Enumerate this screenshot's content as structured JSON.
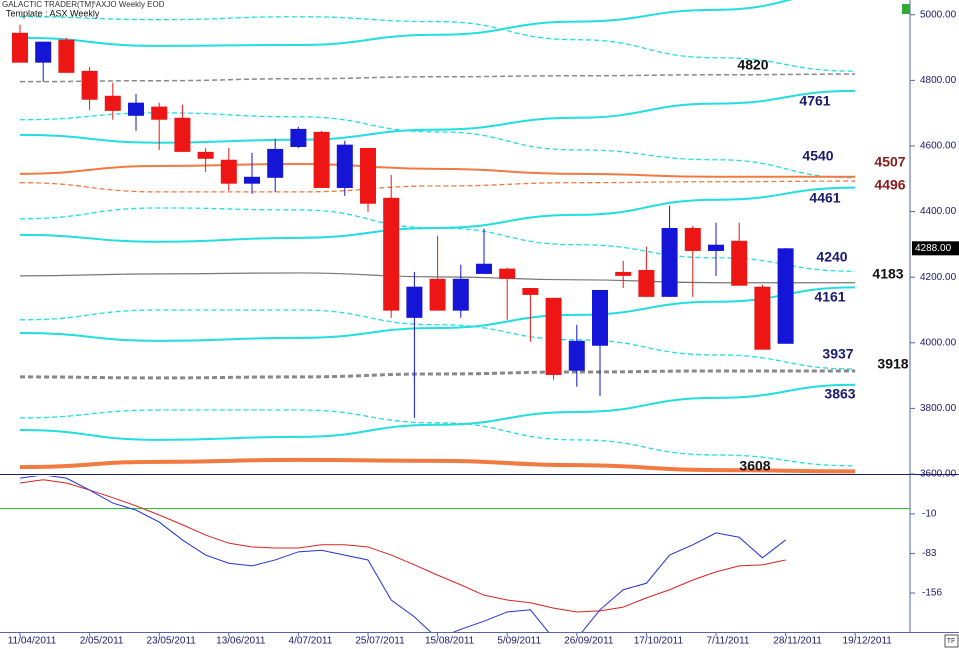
{
  "chart_data": [
    {
      "type": "candlestick",
      "title": "GALACTIC TRADER(TM)",
      "subtitle": "^AXJO Weekly EOD",
      "template": "Template : ASX Weekly",
      "categories": [
        "11/04/2011",
        null,
        null,
        "2/05/2011",
        null,
        null,
        "23/05/2011",
        null,
        null,
        "13/06/2011",
        null,
        null,
        "4/07/2011",
        null,
        null,
        "25/07/2011",
        null,
        null,
        "15/08/2011",
        null,
        null,
        "5/09/2011",
        null,
        null,
        "26/09/2011",
        null,
        null,
        "17/10/2011",
        null,
        null,
        "7/11/2011",
        null,
        null,
        "28/11/2011",
        null,
        null,
        "19/12/2011",
        null,
        null
      ],
      "open": [
        4945,
        4854,
        4924,
        4829,
        4753,
        4692,
        4720,
        4686,
        4582,
        4558,
        4485,
        4503,
        4597,
        4643,
        4472,
        4594,
        4442,
        4076,
        4195,
        4098,
        4210,
        4226,
        4167,
        4137,
        3915,
        3991,
        4216,
        4222,
        4140,
        4350,
        4280,
        4311,
        4171,
        3997,
        null,
        null,
        null,
        null,
        null
      ],
      "high": [
        4970,
        4918,
        4930,
        4841,
        4793,
        4759,
        4732,
        4726,
        4594,
        4594,
        4579,
        4622,
        4658,
        4646,
        4616,
        4594,
        4512,
        4216,
        4326,
        4238,
        4348,
        4229,
        4167,
        4137,
        4055,
        4161,
        4250,
        4293,
        4418,
        4356,
        4366,
        4366,
        4177,
        4289,
        null,
        null,
        null,
        null,
        null
      ],
      "low": [
        4854,
        4796,
        4823,
        4710,
        4680,
        4646,
        4588,
        4582,
        4521,
        4463,
        4454,
        4460,
        4594,
        4472,
        4448,
        4399,
        4076,
        3771,
        4098,
        4076,
        4210,
        4070,
        4003,
        3887,
        3866,
        3838,
        4167,
        4140,
        4140,
        4140,
        4204,
        4174,
        3979,
        3997,
        null,
        null,
        null,
        null,
        null
      ],
      "close": [
        4854,
        4918,
        4823,
        4741,
        4707,
        4732,
        4680,
        4582,
        4561,
        4485,
        4506,
        4591,
        4652,
        4472,
        4604,
        4424,
        4098,
        4171,
        4098,
        4195,
        4241,
        4195,
        4146,
        3902,
        4006,
        4161,
        4204,
        4140,
        4350,
        4280,
        4299,
        4174,
        3979,
        4288,
        null,
        null,
        null,
        null,
        null
      ],
      "up_color": "#1515d8",
      "down_color": "#ee1515",
      "ylim": [
        3600,
        5045
      ],
      "yticks": [
        {
          "value": 3600,
          "label": "3600.00"
        },
        {
          "value": 3800,
          "label": "3800.00"
        },
        {
          "value": 4000,
          "label": "4000.00"
        },
        {
          "value": 4200,
          "label": "4200.00"
        },
        {
          "value": 4400,
          "label": "4400.00"
        },
        {
          "value": 4600,
          "label": "4600.00"
        },
        {
          "value": 4800,
          "label": "4800.00"
        },
        {
          "value": 5000,
          "label": "5000.00"
        }
      ],
      "last_price": {
        "value": 4288,
        "label": "4288.00"
      },
      "overlays": [
        {
          "color": "#22dede",
          "dash": false,
          "width": 2,
          "x": [
            "11/04/2011",
            "23/05/2011",
            "4/07/2011",
            "15/08/2011",
            "26/09/2011",
            "7/11/2011",
            "19/12/2011"
          ],
          "values": [
            4930,
            4905,
            4908,
            4939,
            4979,
            5015,
            5070
          ]
        },
        {
          "color": "#22dede",
          "dash": true,
          "width": 1.3,
          "x": [
            "11/04/2011",
            "23/05/2011",
            "4/07/2011",
            "15/08/2011",
            "26/09/2011",
            "7/11/2011",
            "19/12/2011"
          ],
          "values": [
            4994,
            4985,
            4994,
            4979,
            4924,
            4869,
            4828
          ]
        },
        {
          "color": "#888888",
          "dash": true,
          "width": 1.5,
          "label": 4820,
          "label_color": "#111111",
          "x": [
            "11/04/2011",
            "23/05/2011",
            "4/07/2011",
            "15/08/2011",
            "26/09/2011",
            "7/11/2011",
            "19/12/2011"
          ],
          "values": [
            4796,
            4799,
            4805,
            4811,
            4814,
            4817,
            4819
          ]
        },
        {
          "color": "#22dede",
          "dash": false,
          "width": 2,
          "label": 4761,
          "label_color": "#1a1a6e",
          "x": [
            "11/04/2011",
            "23/05/2011",
            "4/07/2011",
            "15/08/2011",
            "26/09/2011",
            "7/11/2011",
            "19/12/2011"
          ],
          "values": [
            4634,
            4610,
            4619,
            4650,
            4686,
            4729,
            4768
          ]
        },
        {
          "color": "#22dede",
          "dash": true,
          "width": 1.3,
          "label": 4540,
          "label_color": "#1a1a6e",
          "x": [
            "11/04/2011",
            "23/05/2011",
            "4/07/2011",
            "15/08/2011",
            "26/09/2011",
            "7/11/2011",
            "19/12/2011"
          ],
          "values": [
            4680,
            4701,
            4689,
            4643,
            4588,
            4558,
            4503
          ]
        },
        {
          "color": "#f07a40",
          "dash": false,
          "width": 2,
          "label": 4507,
          "label_color": "#8b1a1a",
          "x": [
            "11/04/2011",
            "23/05/2011",
            "4/07/2011",
            "15/08/2011",
            "26/09/2011",
            "7/11/2011",
            "19/12/2011"
          ],
          "values": [
            4515,
            4539,
            4545,
            4530,
            4515,
            4506,
            4506
          ]
        },
        {
          "color": "#f07a40",
          "dash": true,
          "width": 1.3,
          "label": 4496,
          "label_color": "#8b1a1a",
          "x": [
            "11/04/2011",
            "23/05/2011",
            "4/07/2011",
            "15/08/2011",
            "26/09/2011",
            "7/11/2011",
            "19/12/2011"
          ],
          "values": [
            4488,
            4460,
            4460,
            4478,
            4488,
            4491,
            4493
          ]
        },
        {
          "color": "#22dede",
          "dash": false,
          "width": 2,
          "label": 4461,
          "label_color": "#1a1a6e",
          "x": [
            "11/04/2011",
            "23/05/2011",
            "4/07/2011",
            "15/08/2011",
            "26/09/2011",
            "7/11/2011",
            "19/12/2011"
          ],
          "values": [
            4329,
            4308,
            4320,
            4350,
            4390,
            4436,
            4473
          ]
        },
        {
          "color": "#22dede",
          "dash": true,
          "width": 1.3,
          "label": 4240,
          "label_color": "#1a1a6e",
          "x": [
            "11/04/2011",
            "23/05/2011",
            "4/07/2011",
            "15/08/2011",
            "26/09/2011",
            "7/11/2011",
            "19/12/2011"
          ],
          "values": [
            4378,
            4411,
            4405,
            4350,
            4299,
            4259,
            4218
          ]
        },
        {
          "color": "#777777",
          "dash": false,
          "width": 1.2,
          "label": 4183,
          "label_color": "#111111",
          "x": [
            "11/04/2011",
            "23/05/2011",
            "4/07/2011",
            "15/08/2011",
            "26/09/2011",
            "7/11/2011",
            "19/12/2011"
          ],
          "values": [
            4204,
            4210,
            4213,
            4201,
            4192,
            4183,
            4183
          ]
        },
        {
          "color": "#22dede",
          "dash": false,
          "width": 2,
          "label": 4161,
          "label_color": "#1a1a6e",
          "x": [
            "11/04/2011",
            "23/05/2011",
            "4/07/2011",
            "15/08/2011",
            "26/09/2011",
            "7/11/2011",
            "19/12/2011"
          ],
          "values": [
            4030,
            4006,
            4015,
            4045,
            4085,
            4125,
            4169
          ]
        },
        {
          "color": "#22dede",
          "dash": true,
          "width": 1.3,
          "label": 3937,
          "label_color": "#1a1a6e",
          "x": [
            "11/04/2011",
            "23/05/2011",
            "4/07/2011",
            "15/08/2011",
            "26/09/2011",
            "7/11/2011",
            "19/12/2011"
          ],
          "values": [
            4070,
            4100,
            4100,
            4055,
            4009,
            3963,
            3920
          ]
        },
        {
          "color": "#888888",
          "dash": true,
          "width": 3,
          "label": 3918,
          "label_color": "#111111",
          "x": [
            "11/04/2011",
            "23/05/2011",
            "4/07/2011",
            "15/08/2011",
            "26/09/2011",
            "7/11/2011",
            "19/12/2011"
          ],
          "values": [
            3896,
            3893,
            3896,
            3905,
            3911,
            3914,
            3914
          ]
        },
        {
          "color": "#22dede",
          "dash": false,
          "width": 2,
          "label": 3863,
          "label_color": "#1a1a6e",
          "x": [
            "11/04/2011",
            "23/05/2011",
            "4/07/2011",
            "15/08/2011",
            "26/09/2011",
            "7/11/2011",
            "19/12/2011"
          ],
          "values": [
            3734,
            3704,
            3713,
            3750,
            3789,
            3832,
            3872
          ]
        },
        {
          "color": "#22dede",
          "dash": true,
          "width": 1.3,
          "x": [
            "11/04/2011",
            "23/05/2011",
            "4/07/2011",
            "15/08/2011",
            "26/09/2011",
            "7/11/2011",
            "19/12/2011"
          ],
          "values": [
            3771,
            3795,
            3795,
            3756,
            3704,
            3658,
            3625
          ]
        },
        {
          "color": "#f07a40",
          "dash": false,
          "width": 4,
          "label": 3608,
          "label_color": "#111111",
          "x": [
            "11/04/2011",
            "23/05/2011",
            "4/07/2011",
            "15/08/2011",
            "26/09/2011",
            "7/11/2011",
            "19/12/2011"
          ],
          "values": [
            3621,
            3637,
            3643,
            3640,
            3627,
            3612,
            3608
          ]
        }
      ]
    },
    {
      "type": "line",
      "ylim": [
        -228,
        60
      ],
      "yticks": [
        -10,
        -83,
        -156
      ],
      "hline": 0,
      "hline_color": "#22cc22",
      "series": [
        {
          "color": "#dd2222",
          "values": [
            47,
            53,
            47,
            34,
            20,
            5,
            -12,
            -30,
            -49,
            -64,
            -71,
            -73,
            -73,
            -67,
            -67,
            -71,
            -86,
            -104,
            -123,
            -141,
            -160,
            -169,
            -174,
            -184,
            -191,
            -189,
            -182,
            -165,
            -150,
            -132,
            -117,
            -106,
            -104,
            -95,
            null,
            null,
            null,
            null,
            null
          ]
        },
        {
          "color": "#2233dd",
          "values": [
            56,
            62,
            56,
            34,
            10,
            -3,
            -25,
            -58,
            -86,
            -101,
            -106,
            -95,
            -80,
            -77,
            -86,
            -95,
            -169,
            -200,
            -240,
            -223,
            -208,
            -191,
            -187,
            -240,
            -240,
            -187,
            -150,
            -138,
            -86,
            -67,
            -45,
            -53,
            -91,
            -58,
            null,
            null,
            null,
            null,
            null
          ]
        }
      ]
    }
  ]
}
